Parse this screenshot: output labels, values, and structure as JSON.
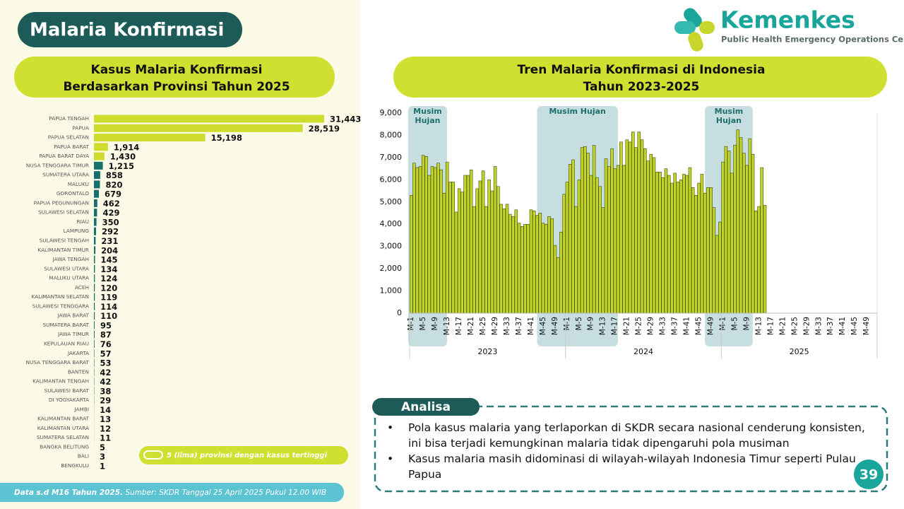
{
  "header": {
    "title": "Malaria Konfirmasi",
    "logo_name": "Kemenkes",
    "logo_subtitle": "Public Health Emergency Operations Center"
  },
  "chart_data": [
    {
      "type": "hbar",
      "title_lines": [
        "Kasus Malaria Konfirmasi",
        "Berdasarkan Provinsi Tahun 2025"
      ],
      "categories": [
        "PAPUA TENGAH",
        "PAPUA",
        "PAPUA SELATAN",
        "PAPUA BARAT",
        "PAPUA BARAT DAYA",
        "NUSA TENGGARA TIMUR",
        "SUMATERA UTARA",
        "MALUKU",
        "GORONTALO",
        "PAPUA PEGUNUNGAN",
        "SULAWESI SELATAN",
        "RIAU",
        "LAMPUNG",
        "SULAWESI TENGAH",
        "KALIMANTAN TIMUR",
        "JAWA TENGAH",
        "SULAWESI UTARA",
        "MALUKU UTARA",
        "ACEH",
        "KALIMANTAN SELATAN",
        "SULAWESI TENGGARA",
        "JAWA BARAT",
        "SUMATERA BARAT",
        "JAWA TIMUR",
        "KEPULAUAN RIAU",
        "JAKARTA",
        "NUSA TENGGARA BARAT",
        "BANTEN",
        "KALIMANTAN TENGAH",
        "SULAWESI BARAT",
        "DI YOGYAKARTA",
        "JAMBI",
        "KALIMANTAN BARAT",
        "KALIMANTAN UTARA",
        "SUMATERA SELATAN",
        "BANGKA BELITUNG",
        "BALI",
        "BENGKULU"
      ],
      "values": [
        31443,
        28519,
        15198,
        1914,
        1430,
        1215,
        858,
        820,
        679,
        462,
        429,
        350,
        292,
        231,
        204,
        145,
        134,
        124,
        120,
        119,
        114,
        110,
        95,
        87,
        76,
        57,
        53,
        42,
        42,
        38,
        29,
        14,
        13,
        12,
        11,
        5,
        3,
        1
      ],
      "value_labels": [
        "31,443",
        "28,519",
        "15,198",
        "1,914",
        "1,430",
        "1,215",
        "858",
        "820",
        "679",
        "462",
        "429",
        "350",
        "292",
        "231",
        "204",
        "145",
        "134",
        "124",
        "120",
        "119",
        "114",
        "110",
        "95",
        "87",
        "76",
        "57",
        "53",
        "42",
        "42",
        "38",
        "29",
        "14",
        "13",
        "12",
        "11",
        "5",
        "3",
        "1"
      ],
      "colors": [
        "#cddc2d",
        "#cddc2d",
        "#cddc2d",
        "#cddc2d",
        "#cddc2d",
        "#17706e",
        "#17706e",
        "#17706e",
        "#17706e",
        "#17706e",
        "#17706e",
        "#17706e",
        "#17706e",
        "#17706e",
        "#17706e",
        "#17706e",
        "#17706e",
        "#17706e",
        "#17706e",
        "#17706e",
        "#17706e",
        "#17706e",
        "#17706e",
        "#17706e",
        "#17706e",
        "#17706e",
        "#17706e",
        "#17706e",
        "#17706e",
        "#17706e",
        "#17706e",
        "#17706e",
        "#17706e",
        "#17706e",
        "#17706e",
        "#17706e",
        "#17706e",
        "#17706e"
      ],
      "legend": "5 (lima) provinsi dengan kasus tertinggi"
    },
    {
      "type": "bar",
      "title_lines": [
        "Tren Malaria Konfirmasi di Indonesia",
        "Tahun 2023-2025"
      ],
      "color": "#c3d52b",
      "categories": [
        "M-1",
        null,
        null,
        null,
        "M-5",
        null,
        null,
        null,
        "M-9",
        null,
        null,
        null,
        "M-13",
        null,
        null,
        null,
        "M-17",
        null,
        null,
        null,
        "M-21",
        null,
        null,
        null,
        "M-25",
        null,
        null,
        null,
        "M-29",
        null,
        null,
        null,
        "M-33",
        null,
        null,
        null,
        "M-37",
        null,
        null,
        null,
        "M-41",
        null,
        null,
        null,
        "M-45",
        null,
        null,
        null,
        "M-49",
        null,
        null,
        null,
        "M-1",
        null,
        null,
        null,
        "M-5",
        null,
        null,
        null,
        "M-9",
        null,
        null,
        null,
        "M-13",
        null,
        null,
        null,
        "M-17",
        null,
        null,
        null,
        "M-21",
        null,
        null,
        null,
        "M-25",
        null,
        null,
        null,
        "M-29",
        null,
        null,
        null,
        "M-33",
        null,
        null,
        null,
        "M-37",
        null,
        null,
        null,
        "M-41",
        null,
        null,
        null,
        "M-45",
        null,
        null,
        null,
        "M-49",
        null,
        null,
        null,
        "M-1",
        null,
        null,
        null,
        "M-5",
        null,
        null,
        null,
        "M-9",
        null,
        null,
        null,
        "M-13",
        null,
        null,
        null,
        "M-17",
        null,
        null,
        null,
        "M-21",
        null,
        null,
        null,
        "M-25",
        null,
        null,
        null,
        "M-29",
        null,
        null,
        null,
        "M-33",
        null,
        null,
        null,
        "M-37",
        null,
        null,
        null,
        "M-41",
        null,
        null,
        null,
        "M-45",
        null,
        null,
        null,
        "M-49",
        null,
        null,
        null
      ],
      "values": [
        5300,
        6750,
        6550,
        6600,
        7100,
        7050,
        6200,
        6600,
        6550,
        6750,
        6450,
        5400,
        6800,
        5900,
        5900,
        4550,
        5600,
        5450,
        6200,
        6200,
        6450,
        4800,
        5600,
        5950,
        6400,
        4800,
        6000,
        5500,
        6600,
        5700,
        4900,
        4700,
        4900,
        4450,
        4350,
        4650,
        4050,
        3900,
        4000,
        4000,
        4650,
        4600,
        4400,
        4500,
        4050,
        4000,
        4350,
        4250,
        3050,
        2500,
        3650,
        5350,
        5900,
        6700,
        6900,
        4800,
        6000,
        7450,
        7500,
        7200,
        6200,
        7550,
        6100,
        5700,
        4750,
        6950,
        6600,
        7400,
        6500,
        6650,
        7700,
        6650,
        7800,
        7700,
        8150,
        7450,
        8150,
        7800,
        7400,
        6850,
        7150,
        7000,
        6350,
        6350,
        6100,
        6500,
        6200,
        5850,
        6300,
        5900,
        6000,
        6250,
        6200,
        6550,
        5650,
        5300,
        5850,
        6250,
        5400,
        5650,
        5650,
        4750,
        3500,
        4100,
        6800,
        7500,
        7300,
        6300,
        7550,
        8250,
        7900,
        7200,
        6650,
        7850,
        7150,
        4600,
        4800,
        6550,
        4850,
        null,
        null,
        null,
        null,
        null,
        null,
        null,
        null,
        null,
        null,
        null,
        null,
        null,
        null,
        null,
        null,
        null,
        null,
        null,
        null,
        null,
        null,
        null,
        null,
        null,
        null,
        null,
        null,
        null,
        null,
        null,
        null,
        null,
        null,
        null,
        null,
        null
      ],
      "years": [
        "2023",
        "2024",
        "2025"
      ],
      "ylim": [
        0,
        9000
      ],
      "yticks": [
        0,
        {
          "value": 1000,
          "label": "1,000"
        },
        {
          "value": 2000,
          "label": "2,000"
        },
        {
          "value": 3000,
          "label": "3,000"
        },
        {
          "value": 4000,
          "label": "4,000"
        },
        {
          "value": 5000,
          "label": "5,000"
        },
        {
          "value": 6000,
          "label": "6,000"
        },
        {
          "value": 7000,
          "label": "7,000"
        },
        {
          "value": 8000,
          "label": "8,000"
        },
        {
          "value": 9000,
          "label": "9,000"
        }
      ],
      "grid": false,
      "annotations": [
        "Musim Hujan",
        "Musim Hujan",
        "Musim Hujan"
      ]
    }
  ],
  "analysis": {
    "title": "Analisa",
    "bullets": [
      "Pola kasus malaria yang terlaporkan di SKDR secara nasional cenderung konsisten, ini bisa terjadi kemungkinan malaria tidak dipengaruhi pola musiman",
      "Kasus malaria masih didominasi di wilayah-wilayah Indonesia Timur seperti Pulau Papua"
    ]
  },
  "footer": {
    "note": "Data s.d M16 Tahun 2025.",
    "source": "Sumber: SKDR Tanggal 25 April 2025 Pukul 12.00 WIB"
  },
  "page_number": 39
}
